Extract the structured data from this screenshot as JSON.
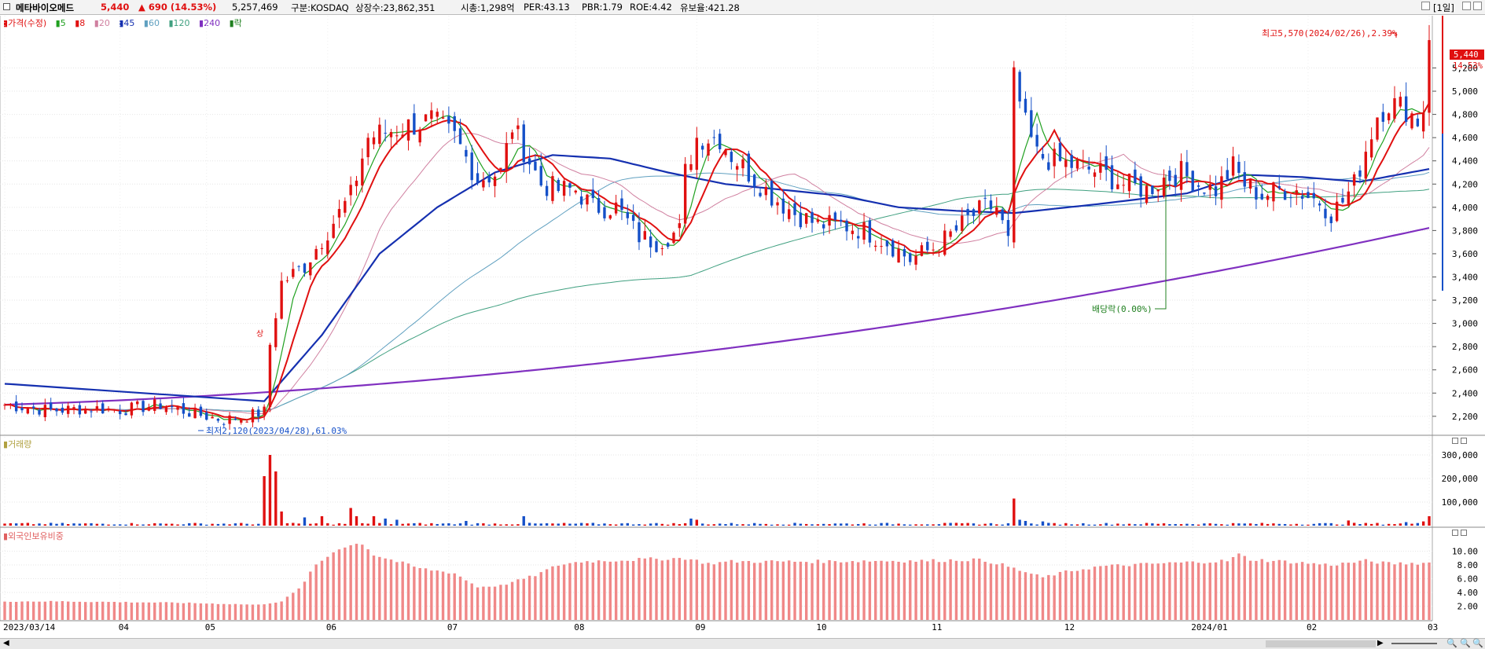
{
  "header": {
    "checkbox_icon": "checkbox-icon",
    "stock_name": "메타바이오메드",
    "price": "5,440",
    "change": "▲ 690 (14.53%)",
    "volume": "5,257,469",
    "market": "구분:KOSDAQ",
    "listed_shares": "상장수:23,862,351",
    "market_cap": "시총:1,298억",
    "per": "PER:43.13",
    "pbr": "PBR:1.79",
    "roe": "ROE:4.42",
    "retention": "유보율:421.28",
    "timeframe": "[1일]",
    "colors": {
      "up": "#e01010",
      "down": "#1550c8"
    }
  },
  "legend": {
    "price_label": "가격(수정)",
    "ma5": "5",
    "ma8": "8",
    "ma20": "20",
    "ma45": "45",
    "ma60": "60",
    "ma120": "120",
    "ma240": "240",
    "ex_label": "락"
  },
  "annotations": {
    "high": "최고5,570(2024/02/26),2.39%",
    "low": "최저2,120(2023/04/28),61.03%",
    "dividend": "배당락(0.00%)",
    "limit_up": "상"
  },
  "price_badge": {
    "value": "5,440",
    "pct": "14.53%"
  },
  "panels": {
    "volume_title": "거래량",
    "foreign_title": "외국인보유비중"
  },
  "chart_data": [
    {
      "type": "candlestick",
      "title": "",
      "ylim": [
        2050,
        5650
      ],
      "y_ticks": [
        "5,200",
        "5,000",
        "4,800",
        "4,600",
        "4,400",
        "4,200",
        "4,000",
        "3,800",
        "3,600",
        "3,400",
        "3,200",
        "3,000",
        "2,800",
        "2,600",
        "2,400",
        "2,200"
      ],
      "x_ticks": [
        "2023/03/14",
        "04",
        "05",
        "06",
        "07",
        "08",
        "09",
        "10",
        "11",
        "12",
        "2024/01",
        "02",
        "03"
      ],
      "anchors": [
        [
          0,
          2300
        ],
        [
          8,
          2250
        ],
        [
          15,
          2270
        ],
        [
          20,
          2255
        ],
        [
          27,
          2300
        ],
        [
          33,
          2220
        ],
        [
          38,
          2170
        ],
        [
          42,
          2200
        ],
        [
          45,
          2240
        ],
        [
          46,
          2820
        ],
        [
          48,
          3350
        ],
        [
          52,
          3500
        ],
        [
          56,
          3800
        ],
        [
          60,
          4100
        ],
        [
          63,
          4600
        ],
        [
          66,
          4650
        ],
        [
          70,
          4700
        ],
        [
          74,
          4750
        ],
        [
          78,
          4600
        ],
        [
          82,
          4250
        ],
        [
          86,
          4300
        ],
        [
          88,
          4700
        ],
        [
          90,
          4500
        ],
        [
          93,
          4200
        ],
        [
          96,
          4150
        ],
        [
          99,
          4150
        ],
        [
          102,
          4000
        ],
        [
          106,
          4000
        ],
        [
          110,
          3750
        ],
        [
          113,
          3700
        ],
        [
          117,
          3800
        ],
        [
          118,
          4300
        ],
        [
          120,
          4600
        ],
        [
          124,
          4600
        ],
        [
          126,
          4450
        ],
        [
          130,
          4250
        ],
        [
          133,
          4100
        ],
        [
          137,
          3950
        ],
        [
          141,
          3850
        ],
        [
          145,
          3850
        ],
        [
          149,
          3800
        ],
        [
          153,
          3700
        ],
        [
          157,
          3550
        ],
        [
          161,
          3650
        ],
        [
          165,
          3800
        ],
        [
          167,
          3900
        ],
        [
          170,
          4000
        ],
        [
          172,
          4000
        ],
        [
          174,
          3700
        ],
        [
          175,
          5100
        ],
        [
          177,
          4700
        ],
        [
          179,
          4450
        ],
        [
          182,
          4400
        ],
        [
          186,
          4350
        ],
        [
          190,
          4300
        ],
        [
          194,
          4200
        ],
        [
          198,
          4150
        ],
        [
          201,
          4250
        ],
        [
          204,
          4300
        ],
        [
          207,
          4200
        ],
        [
          210,
          4150
        ],
        [
          213,
          4350
        ],
        [
          215,
          4200
        ],
        [
          218,
          4100
        ],
        [
          221,
          4150
        ],
        [
          224,
          4150
        ],
        [
          228,
          4050
        ],
        [
          230,
          3950
        ],
        [
          232,
          4050
        ],
        [
          234,
          4200
        ],
        [
          236,
          4500
        ],
        [
          238,
          4800
        ],
        [
          240,
          4900
        ],
        [
          243,
          4850
        ],
        [
          245,
          4750
        ],
        [
          246,
          4850
        ],
        [
          247,
          5440
        ]
      ],
      "highs": [
        {
          "x": 247,
          "y": 5570
        }
      ],
      "ma_labels": [
        "5",
        "8",
        "20",
        "45",
        "60",
        "120",
        "240"
      ],
      "ma240_start": 2300,
      "ma240_end": 3800,
      "ma45_anchors": [
        [
          0,
          2480
        ],
        [
          45,
          2330
        ],
        [
          55,
          2900
        ],
        [
          65,
          3600
        ],
        [
          75,
          4000
        ],
        [
          85,
          4300
        ],
        [
          95,
          4450
        ],
        [
          105,
          4420
        ],
        [
          115,
          4300
        ],
        [
          125,
          4200
        ],
        [
          135,
          4150
        ],
        [
          145,
          4100
        ],
        [
          155,
          4000
        ],
        [
          165,
          3970
        ],
        [
          175,
          3950
        ],
        [
          190,
          4030
        ],
        [
          205,
          4120
        ],
        [
          215,
          4280
        ],
        [
          225,
          4260
        ],
        [
          235,
          4220
        ],
        [
          247,
          4330
        ]
      ],
      "total_bars": 248
    },
    {
      "type": "bar",
      "title": "거래량",
      "y_ticks": [
        "300,000",
        "200,000",
        "100,000"
      ],
      "ylim": [
        0,
        330000
      ],
      "spikes": [
        [
          45,
          210000
        ],
        [
          46,
          300000
        ],
        [
          47,
          230000
        ],
        [
          48,
          60000
        ],
        [
          52,
          35000
        ],
        [
          55,
          40000
        ],
        [
          60,
          75000
        ],
        [
          61,
          40000
        ],
        [
          64,
          40000
        ],
        [
          66,
          30000
        ],
        [
          68,
          25000
        ],
        [
          80,
          20000
        ],
        [
          90,
          40000
        ],
        [
          119,
          30000
        ],
        [
          120,
          25000
        ],
        [
          175,
          115000
        ],
        [
          176,
          25000
        ],
        [
          177,
          20000
        ],
        [
          180,
          18000
        ],
        [
          233,
          22000
        ],
        [
          243,
          15000
        ],
        [
          246,
          18000
        ],
        [
          247,
          40000
        ]
      ],
      "base": 8000
    },
    {
      "type": "bar",
      "title": "외국인보유비중",
      "y_ticks": [
        "10.00",
        "8.00",
        "6.00",
        "4.00",
        "2.00"
      ],
      "ylim": [
        0,
        12
      ],
      "anchors": [
        [
          0,
          2.7
        ],
        [
          10,
          2.7
        ],
        [
          20,
          2.6
        ],
        [
          30,
          2.5
        ],
        [
          40,
          2.3
        ],
        [
          44,
          2.2
        ],
        [
          48,
          2.7
        ],
        [
          51,
          4.5
        ],
        [
          54,
          8.0
        ],
        [
          58,
          10.5
        ],
        [
          62,
          11.2
        ],
        [
          64,
          9.5
        ],
        [
          68,
          8.5
        ],
        [
          72,
          7.5
        ],
        [
          78,
          6.8
        ],
        [
          82,
          4.8
        ],
        [
          86,
          5.0
        ],
        [
          92,
          6.5
        ],
        [
          96,
          8.0
        ],
        [
          100,
          8.5
        ],
        [
          110,
          8.8
        ],
        [
          118,
          9.0
        ],
        [
          122,
          8.2
        ],
        [
          126,
          8.5
        ],
        [
          140,
          8.5
        ],
        [
          150,
          8.6
        ],
        [
          160,
          8.6
        ],
        [
          168,
          8.8
        ],
        [
          172,
          8.3
        ],
        [
          176,
          7.2
        ],
        [
          180,
          6.2
        ],
        [
          184,
          7.0
        ],
        [
          190,
          7.8
        ],
        [
          200,
          8.2
        ],
        [
          206,
          8.4
        ],
        [
          212,
          8.6
        ],
        [
          214,
          9.5
        ],
        [
          216,
          8.8
        ],
        [
          222,
          8.5
        ],
        [
          230,
          8.0
        ],
        [
          236,
          8.6
        ],
        [
          240,
          8.2
        ],
        [
          247,
          8.3
        ]
      ]
    }
  ]
}
